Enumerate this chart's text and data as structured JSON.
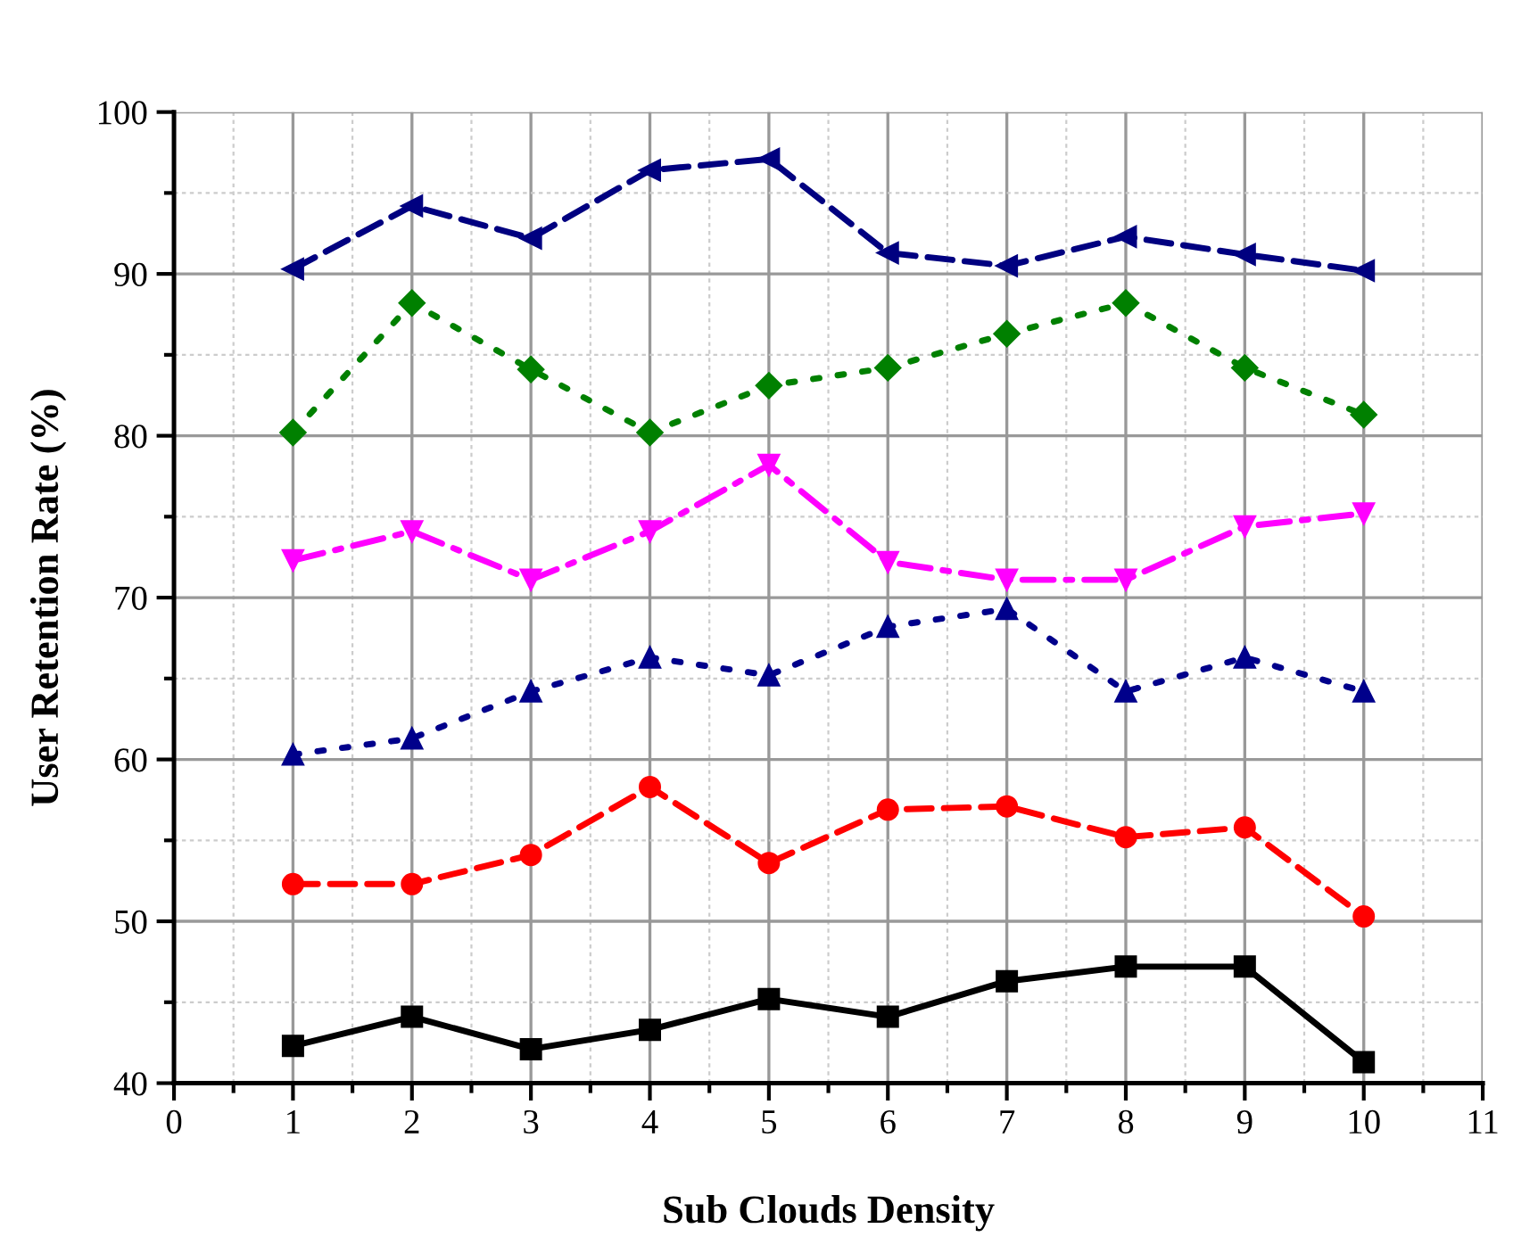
{
  "chart_data": {
    "type": "line",
    "xlabel": "Sub Clouds Density",
    "ylabel": "User Retention Rate (%)",
    "x": [
      1,
      2,
      3,
      4,
      5,
      6,
      7,
      8,
      9,
      10
    ],
    "xlim": [
      0,
      11
    ],
    "xticks": [
      0,
      1,
      2,
      3,
      4,
      5,
      6,
      7,
      8,
      9,
      10,
      11
    ],
    "ylim": [
      40,
      100
    ],
    "yticks": [
      40,
      50,
      60,
      70,
      80,
      90,
      100
    ],
    "grid": true,
    "series": [
      {
        "color": "#000000",
        "marker": "square",
        "line_style": "solid",
        "values": [
          42.3,
          44.1,
          42.1,
          43.3,
          45.2,
          44.1,
          46.3,
          47.2,
          47.2,
          41.3
        ]
      },
      {
        "color": "#ff0000",
        "marker": "circle",
        "line_style": "dashed",
        "values": [
          52.3,
          52.3,
          54.1,
          58.3,
          53.6,
          56.9,
          57.1,
          55.2,
          55.8,
          50.3
        ]
      },
      {
        "color": "#00008b",
        "marker": "triangle",
        "line_style": "dotted",
        "values": [
          60.3,
          61.3,
          64.2,
          66.3,
          65.2,
          68.2,
          69.3,
          64.2,
          66.3,
          64.2
        ]
      },
      {
        "color": "#ff00ff",
        "marker": "triangle_down",
        "line_style": "dashdot",
        "values": [
          72.3,
          74.1,
          71.1,
          74.1,
          78.2,
          72.2,
          71.1,
          71.1,
          74.4,
          75.2
        ]
      },
      {
        "color": "#008000",
        "marker": "diamond",
        "line_style": "dotted",
        "values": [
          80.2,
          88.2,
          84.1,
          80.2,
          83.1,
          84.2,
          86.3,
          88.2,
          84.2,
          81.3
        ]
      },
      {
        "color": "#000080",
        "marker": "triangle_left",
        "line_style": "dashed",
        "values": [
          90.3,
          94.2,
          92.2,
          96.4,
          97.1,
          91.3,
          90.5,
          92.3,
          91.2,
          90.2
        ]
      }
    ]
  }
}
